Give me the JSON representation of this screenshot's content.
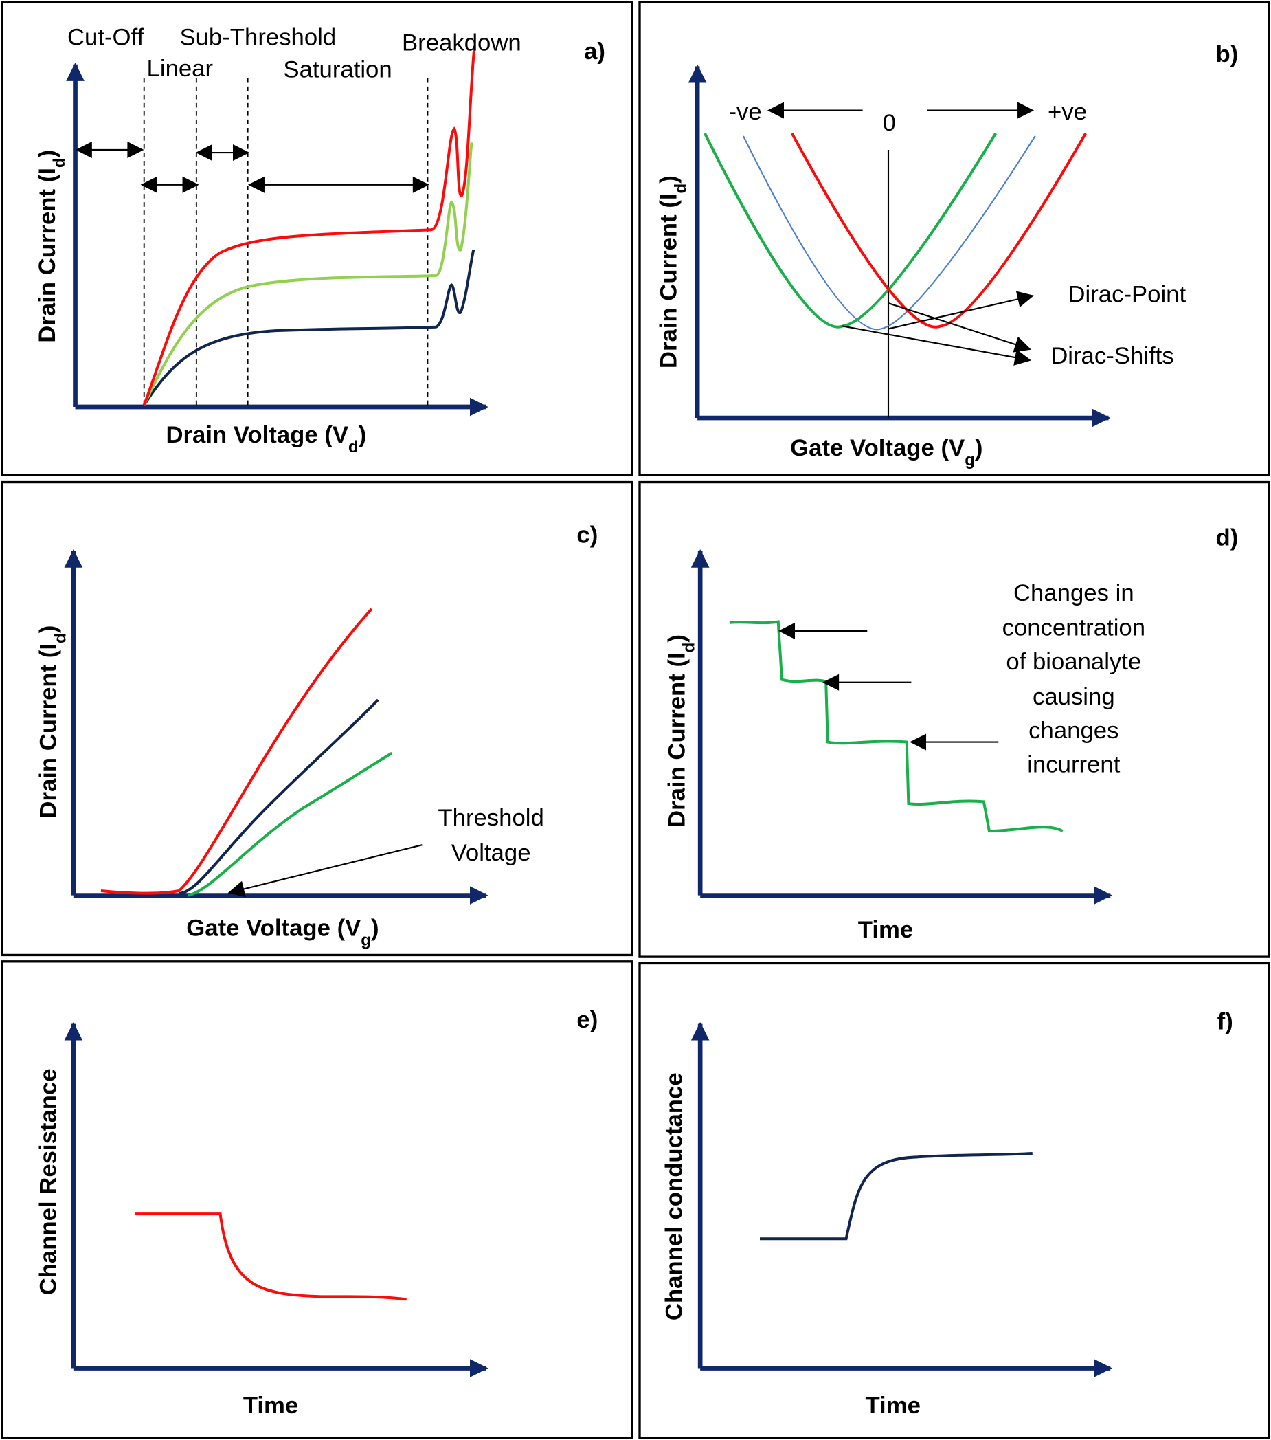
{
  "panels": [
    {
      "label": "a)",
      "y_label": [
        "Drain Current (I",
        "d",
        ")"
      ],
      "x_label": [
        "Drain Voltage (V",
        "d",
        ")"
      ],
      "regions": [
        "Cut-Off",
        "Sub-Threshold",
        "Breakdown",
        "Linear",
        "Saturation"
      ]
    },
    {
      "label": "b)",
      "y_label": [
        "Drain Current (I",
        "d",
        ")"
      ],
      "x_label": [
        "Gate Voltage (V",
        "g",
        ")"
      ],
      "annotations": [
        "-ve",
        "0",
        "+ve",
        "Dirac-Point",
        "Dirac-Shifts"
      ]
    },
    {
      "label": "c)",
      "y_label": [
        "Drain Current (I",
        "d",
        ")"
      ],
      "x_label": [
        "Gate Voltage (V",
        "g",
        ")"
      ],
      "annotations": [
        "Threshold",
        "Voltage"
      ]
    },
    {
      "label": "d)",
      "y_label": [
        "Drain Current (I",
        "d",
        ")"
      ],
      "x_label": [
        "Time"
      ],
      "annotations": [
        "Changes in",
        "concentration",
        "of bioanalyte",
        "causing",
        "changes",
        "incurrent"
      ]
    },
    {
      "label": "e)",
      "y_label": [
        "Channel Resistance"
      ],
      "x_label": [
        "Time"
      ]
    },
    {
      "label": "f)",
      "y_label": [
        "Channel conductance"
      ],
      "x_label": [
        "Time"
      ]
    }
  ]
}
